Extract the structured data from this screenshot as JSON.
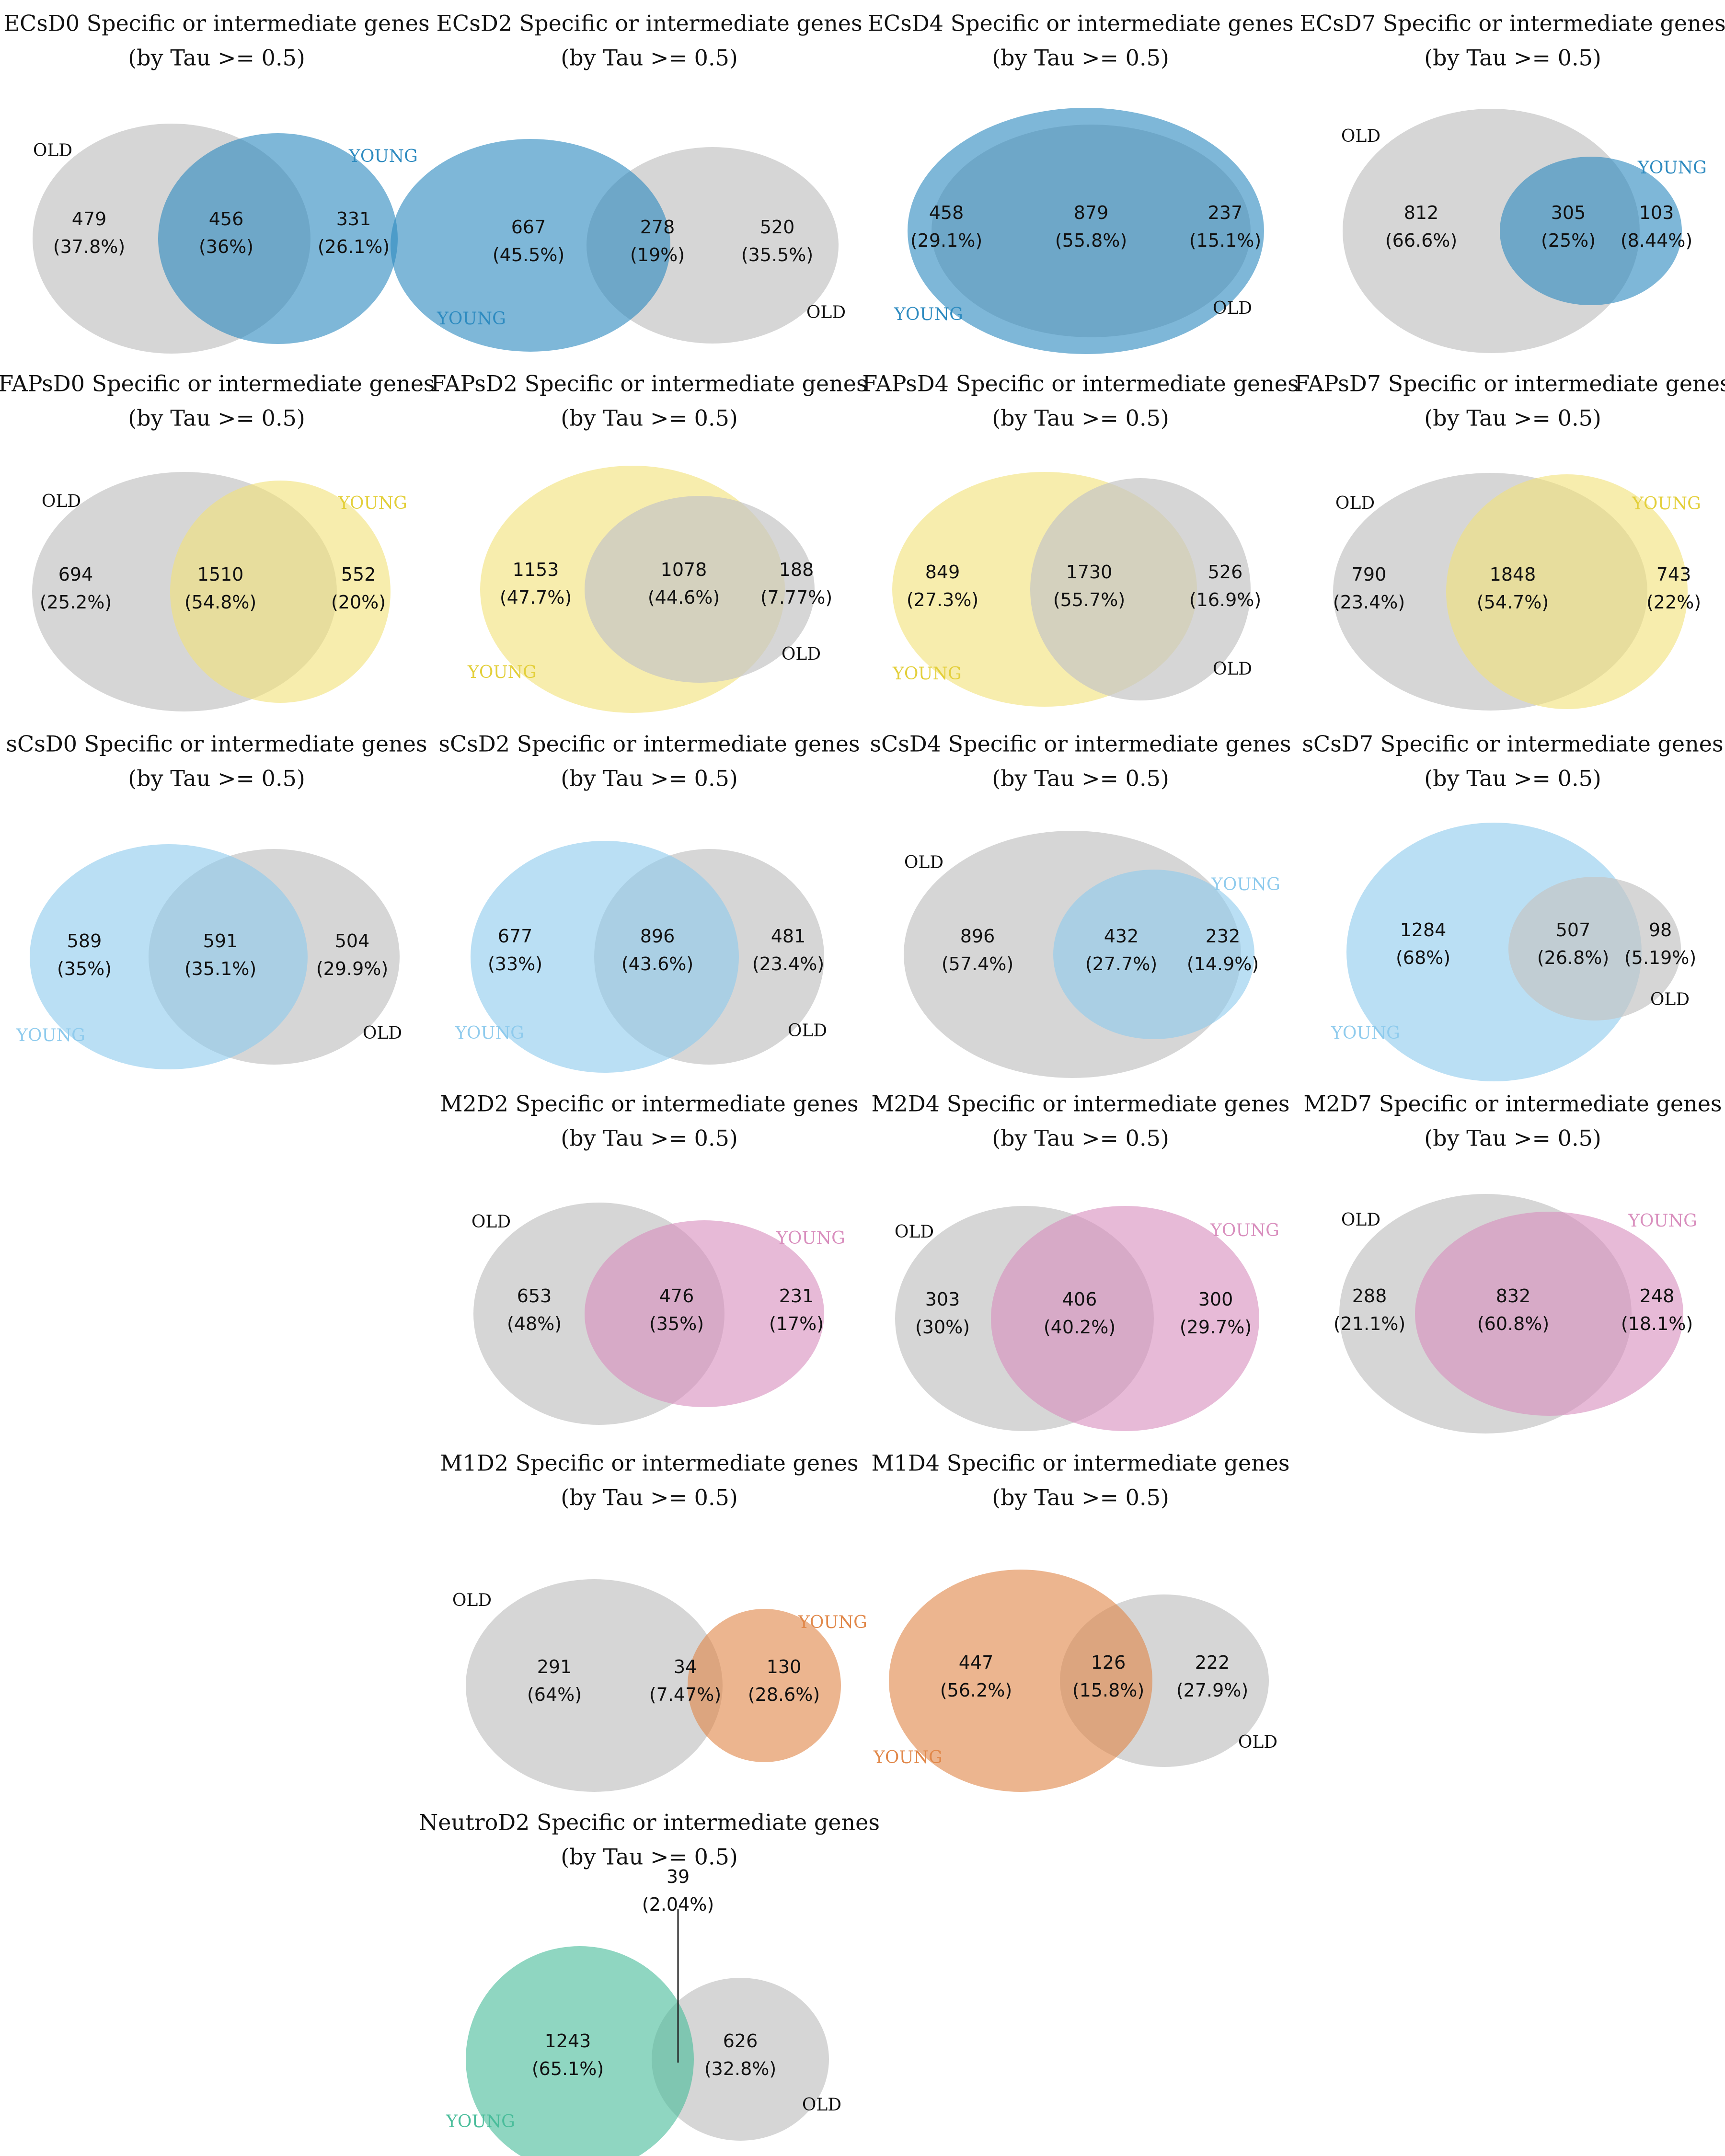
{
  "colors": {
    "old": "#c4c4c4",
    "ECs": "#2e8bc0",
    "FAPs": "#f2e27a",
    "sCs": "#8fcbed",
    "M2": "#d98fbe",
    "M1": "#e1884a",
    "Neutro": "#4abd9b"
  },
  "diagrams": [
    {
      "id": "ECsD0",
      "title": [
        "ECsD0 Specific or intermediate genes",
        "(by Tau >= 0.5)"
      ],
      "palette": "ECs",
      "left": {
        "count": "479",
        "pct": "(37.8%)"
      },
      "mid": {
        "count": "456",
        "pct": "(36%)"
      },
      "right": {
        "count": "331",
        "pct": "(26.1%)"
      },
      "set_labels": [
        "OLD",
        "YOUNG"
      ]
    },
    {
      "id": "ECsD2",
      "title": [
        "ECsD2 Specific or intermediate genes",
        "(by Tau >= 0.5)"
      ],
      "palette": "ECs",
      "left": {
        "count": "667",
        "pct": "(45.5%)"
      },
      "mid": {
        "count": "278",
        "pct": "(19%)"
      },
      "right": {
        "count": "520",
        "pct": "(35.5%)"
      },
      "set_labels": [
        "YOUNG",
        "OLD"
      ]
    },
    {
      "id": "ECsD4",
      "title": [
        "ECsD4 Specific or intermediate genes",
        "(by Tau >= 0.5)"
      ],
      "palette": "ECs",
      "left": {
        "count": "458",
        "pct": "(29.1%)"
      },
      "mid": {
        "count": "879",
        "pct": "(55.8%)"
      },
      "right": {
        "count": "237",
        "pct": "(15.1%)"
      },
      "set_labels": [
        "YOUNG",
        "OLD"
      ]
    },
    {
      "id": "ECsD7",
      "title": [
        "ECsD7 Specific or intermediate genes",
        "(by Tau >= 0.5)"
      ],
      "palette": "ECs",
      "left": {
        "count": "812",
        "pct": "(66.6%)"
      },
      "mid": {
        "count": "305",
        "pct": "(25%)"
      },
      "right": {
        "count": "103",
        "pct": "(8.44%)"
      },
      "set_labels": [
        "OLD",
        "YOUNG"
      ]
    },
    {
      "id": "FAPsD0",
      "title": [
        "FAPsD0 Specific or intermediate genes",
        "(by Tau >= 0.5)"
      ],
      "palette": "FAPs",
      "left": {
        "count": "694",
        "pct": "(25.2%)"
      },
      "mid": {
        "count": "1510",
        "pct": "(54.8%)"
      },
      "right": {
        "count": "552",
        "pct": "(20%)"
      },
      "set_labels": [
        "OLD",
        "YOUNG"
      ]
    },
    {
      "id": "FAPsD2",
      "title": [
        "FAPsD2 Specific or intermediate genes",
        "(by Tau >= 0.5)"
      ],
      "palette": "FAPs",
      "left": {
        "count": "1153",
        "pct": "(47.7%)"
      },
      "mid": {
        "count": "1078",
        "pct": "(44.6%)"
      },
      "right": {
        "count": "188",
        "pct": "(7.77%)"
      },
      "set_labels": [
        "YOUNG",
        "OLD"
      ]
    },
    {
      "id": "FAPsD4",
      "title": [
        "FAPsD4 Specific or intermediate genes",
        "(by Tau >= 0.5)"
      ],
      "palette": "FAPs",
      "left": {
        "count": "849",
        "pct": "(27.3%)"
      },
      "mid": {
        "count": "1730",
        "pct": "(55.7%)"
      },
      "right": {
        "count": "526",
        "pct": "(16.9%)"
      },
      "set_labels": [
        "YOUNG",
        "OLD"
      ]
    },
    {
      "id": "FAPsD7",
      "title": [
        "FAPsD7 Specific or intermediate genes",
        "(by Tau >= 0.5)"
      ],
      "palette": "FAPs",
      "left": {
        "count": "790",
        "pct": "(23.4%)"
      },
      "mid": {
        "count": "1848",
        "pct": "(54.7%)"
      },
      "right": {
        "count": "743",
        "pct": "(22%)"
      },
      "set_labels": [
        "OLD",
        "YOUNG"
      ]
    },
    {
      "id": "sCsD0",
      "title": [
        "sCsD0 Specific or intermediate genes",
        "(by Tau >= 0.5)"
      ],
      "palette": "sCs",
      "left": {
        "count": "589",
        "pct": "(35%)"
      },
      "mid": {
        "count": "591",
        "pct": "(35.1%)"
      },
      "right": {
        "count": "504",
        "pct": "(29.9%)"
      },
      "set_labels": [
        "YOUNG",
        "OLD"
      ]
    },
    {
      "id": "sCsD2",
      "title": [
        "sCsD2 Specific or intermediate genes",
        "(by Tau >= 0.5)"
      ],
      "palette": "sCs",
      "left": {
        "count": "677",
        "pct": "(33%)"
      },
      "mid": {
        "count": "896",
        "pct": "(43.6%)"
      },
      "right": {
        "count": "481",
        "pct": "(23.4%)"
      },
      "set_labels": [
        "YOUNG",
        "OLD"
      ]
    },
    {
      "id": "sCsD4",
      "title": [
        "sCsD4 Specific or intermediate genes",
        "(by Tau >= 0.5)"
      ],
      "palette": "sCs",
      "left": {
        "count": "896",
        "pct": "(57.4%)"
      },
      "mid": {
        "count": "432",
        "pct": "(27.7%)"
      },
      "right": {
        "count": "232",
        "pct": "(14.9%)"
      },
      "set_labels": [
        "OLD",
        "YOUNG"
      ]
    },
    {
      "id": "sCsD7",
      "title": [
        "sCsD7 Specific or intermediate genes",
        "(by Tau >= 0.5)"
      ],
      "palette": "sCs",
      "left": {
        "count": "1284",
        "pct": "(68%)"
      },
      "mid": {
        "count": "507",
        "pct": "(26.8%)"
      },
      "right": {
        "count": "98",
        "pct": "(5.19%)"
      },
      "set_labels": [
        "YOUNG",
        "OLD"
      ]
    },
    {
      "id": "M2D2",
      "title": [
        "M2D2 Specific or intermediate genes",
        "(by Tau >= 0.5)"
      ],
      "palette": "M2",
      "left": {
        "count": "653",
        "pct": "(48%)"
      },
      "mid": {
        "count": "476",
        "pct": "(35%)"
      },
      "right": {
        "count": "231",
        "pct": "(17%)"
      },
      "set_labels": [
        "OLD",
        "YOUNG"
      ]
    },
    {
      "id": "M2D4",
      "title": [
        "M2D4 Specific or intermediate genes",
        "(by Tau >= 0.5)"
      ],
      "palette": "M2",
      "left": {
        "count": "303",
        "pct": "(30%)"
      },
      "mid": {
        "count": "406",
        "pct": "(40.2%)"
      },
      "right": {
        "count": "300",
        "pct": "(29.7%)"
      },
      "set_labels": [
        "OLD",
        "YOUNG"
      ]
    },
    {
      "id": "M2D7",
      "title": [
        "M2D7 Specific or intermediate genes",
        "(by Tau >= 0.5)"
      ],
      "palette": "M2",
      "left": {
        "count": "288",
        "pct": "(21.1%)"
      },
      "mid": {
        "count": "832",
        "pct": "(60.8%)"
      },
      "right": {
        "count": "248",
        "pct": "(18.1%)"
      },
      "set_labels": [
        "OLD",
        "YOUNG"
      ]
    },
    {
      "id": "M1D2",
      "title": [
        "M1D2 Specific or intermediate genes",
        "(by Tau >= 0.5)"
      ],
      "palette": "M1",
      "left": {
        "count": "291",
        "pct": "(64%)"
      },
      "mid": {
        "count": "34",
        "pct": "(7.47%)"
      },
      "right": {
        "count": "130",
        "pct": "(28.6%)"
      },
      "set_labels": [
        "OLD",
        "YOUNG"
      ]
    },
    {
      "id": "M1D4",
      "title": [
        "M1D4 Specific or intermediate genes",
        "(by Tau >= 0.5)"
      ],
      "palette": "M1",
      "left": {
        "count": "447",
        "pct": "(56.2%)"
      },
      "mid": {
        "count": "126",
        "pct": "(15.8%)"
      },
      "right": {
        "count": "222",
        "pct": "(27.9%)"
      },
      "set_labels": [
        "YOUNG",
        "OLD"
      ]
    },
    {
      "id": "NeutroD2",
      "title": [
        "NeutroD2 Specific or intermediate genes",
        "(by Tau >= 0.5)"
      ],
      "palette": "Neutro",
      "left": {
        "count": "1243",
        "pct": "(65.1%)"
      },
      "mid": {
        "count": "39",
        "pct": "(2.04%)"
      },
      "right": {
        "count": "626",
        "pct": "(32.8%)"
      },
      "set_labels": [
        "YOUNG",
        "OLD"
      ]
    }
  ]
}
